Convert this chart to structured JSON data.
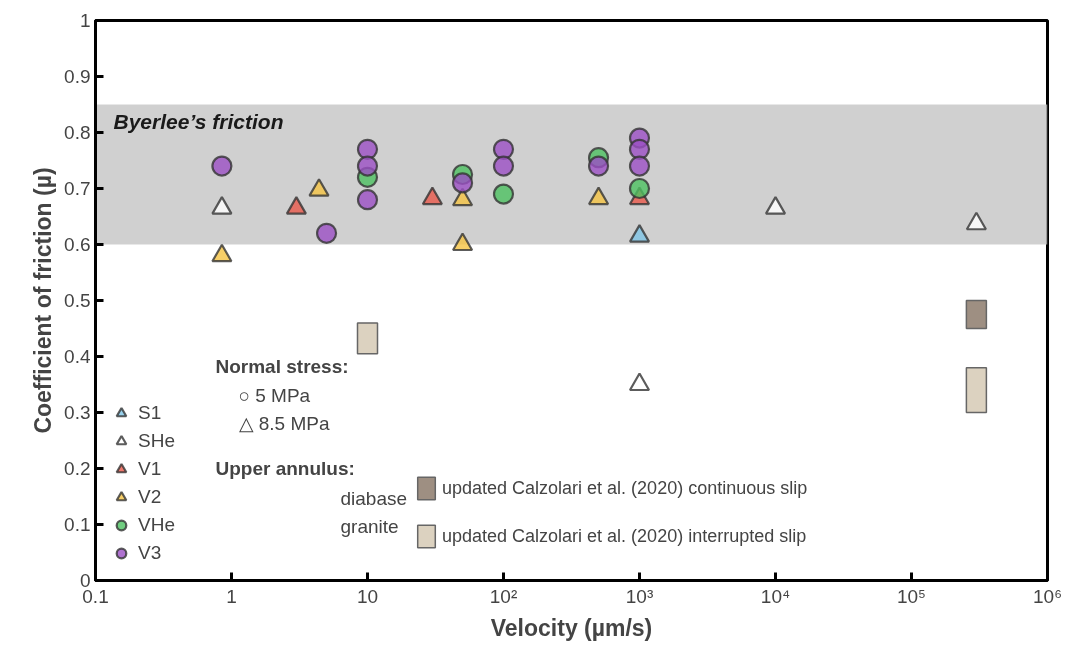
{
  "chart_data": {
    "type": "scatter",
    "xlabel": "Velocity (µm/s)",
    "ylabel": "Coefficient of friction (µ)",
    "log": "x",
    "xlim": [
      0.1,
      1000000
    ],
    "ylim": [
      0,
      1
    ],
    "xticks": [
      0.1,
      1,
      10,
      {
        "value": 100,
        "label": "10²"
      },
      {
        "value": 1000,
        "label": "10³"
      },
      {
        "value": 10000,
        "label": "10⁴"
      },
      {
        "value": 100000,
        "label": "10⁵"
      },
      {
        "value": 1000000,
        "label": "10⁶"
      }
    ],
    "yticks": [
      0,
      0.1,
      0.2,
      0.3,
      0.4,
      0.5,
      0.6,
      0.7,
      0.8,
      0.9,
      1
    ],
    "legend": "bottom left",
    "bands": [
      {
        "axis": "y",
        "from": 0.6,
        "to": 0.85,
        "label": "Byerlee’s friction",
        "color": "#c4c4c4"
      }
    ],
    "annotations": [
      "Normal stress:",
      "○  5 MPa",
      "△  8.5 MPa",
      "Upper annulus:",
      "diabase",
      "granite"
    ],
    "series": [
      {
        "name": "S1",
        "marker": "triangle",
        "color": "#7ec4e6",
        "x": [
          1000
        ],
        "values": [
          0.615
        ]
      },
      {
        "name": "SHe",
        "marker": "triangle",
        "color": "#ffffff",
        "x": [
          0.85,
          1000,
          10000,
          300000
        ],
        "values": [
          0.665,
          0.35,
          0.665,
          0.637
        ]
      },
      {
        "name": "V1",
        "marker": "triangle",
        "color": "#e8574a",
        "x": [
          3,
          30,
          1000
        ],
        "values": [
          0.665,
          0.682,
          0.682
        ]
      },
      {
        "name": "V2",
        "marker": "triangle",
        "color": "#f5c342",
        "x": [
          0.85,
          4.4,
          50,
          50,
          500
        ],
        "values": [
          0.58,
          0.697,
          0.68,
          0.6,
          0.682
        ]
      },
      {
        "name": "VHe",
        "marker": "circle",
        "color": "#4cc160",
        "x": [
          10,
          50,
          100,
          500,
          1000
        ],
        "values": [
          0.72,
          0.725,
          0.69,
          0.755,
          0.7
        ]
      },
      {
        "name": "V3",
        "marker": "circle",
        "color": "#9b4fc4",
        "x": [
          0.85,
          5,
          10,
          10,
          10,
          50,
          100,
          100,
          500,
          1000,
          1000,
          1000
        ],
        "values": [
          0.74,
          0.62,
          0.77,
          0.74,
          0.68,
          0.71,
          0.77,
          0.74,
          0.74,
          0.79,
          0.77,
          0.74
        ]
      },
      {
        "name": "updated Calzolari et al. (2020) continuous slip",
        "type": "bar",
        "color": "#9e8f82",
        "x": [
          300000
        ],
        "base": [
          0.45
        ],
        "values": [
          0.05
        ]
      },
      {
        "name": "updated Calzolari et al. (2020) interrupted slip",
        "type": "bar",
        "color": "#dcd2c0",
        "x": [
          10,
          300000
        ],
        "base": [
          0.405,
          0.3
        ],
        "values": [
          0.055,
          0.08
        ]
      }
    ]
  }
}
